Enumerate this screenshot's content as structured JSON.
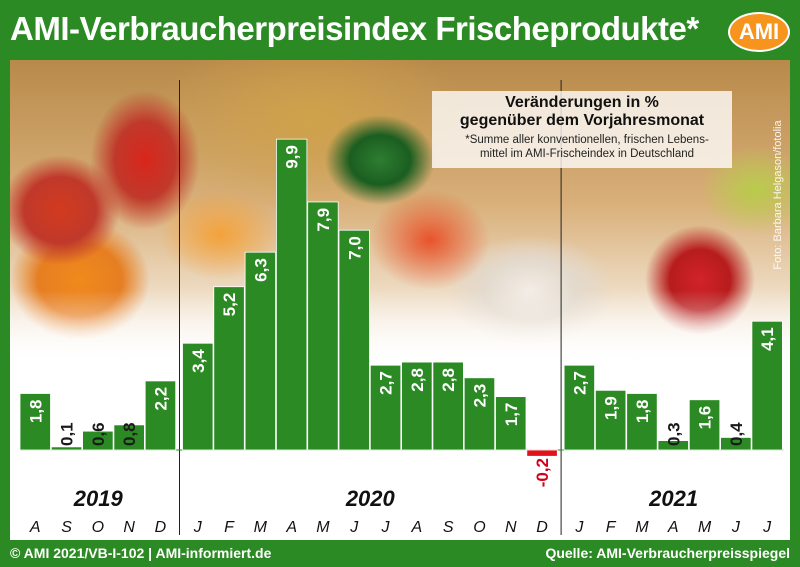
{
  "header": {
    "title": "AMI-Verbraucherpreisindex Frischeprodukte*",
    "logo_text": "AMI"
  },
  "legend": {
    "subtitle_line1": "Veränderungen in %",
    "subtitle_line2": "gegenüber dem Vorjahresmonat",
    "footnote_line1": "*Summe aller konventionellen, frischen Lebens-",
    "footnote_line2": "mittel im AMI-Frischeindex in Deutschland"
  },
  "photo_credit": "Foto: Barbara Helgason/fotolia",
  "footer": {
    "left": "© AMI 2021/VB-I-102 | AMI-informiert.de",
    "right": "Quelle: AMI-Verbraucherpreisspiegel"
  },
  "colors": {
    "bar_positive": "#2c8a24",
    "bar_negative": "#e0121b",
    "brand_green": "#2c8a24",
    "logo_orange": "#f7941d"
  },
  "chart_data": {
    "type": "bar",
    "title": "AMI-Verbraucherpreisindex Frischeprodukte*",
    "subtitle": "Veränderungen in % gegenüber dem Vorjahresmonat",
    "ylim": [
      -0.2,
      9.9
    ],
    "grid": false,
    "years": [
      {
        "label": "2019",
        "months": [
          "A",
          "S",
          "O",
          "N",
          "D"
        ]
      },
      {
        "label": "2020",
        "months": [
          "J",
          "F",
          "M",
          "A",
          "M",
          "J",
          "J",
          "A",
          "S",
          "O",
          "N",
          "D"
        ]
      },
      {
        "label": "2021",
        "months": [
          "J",
          "F",
          "M",
          "A",
          "M",
          "J",
          "J"
        ]
      }
    ],
    "categories": [
      "A",
      "S",
      "O",
      "N",
      "D",
      "J",
      "F",
      "M",
      "A",
      "M",
      "J",
      "J",
      "A",
      "S",
      "O",
      "N",
      "D",
      "J",
      "F",
      "M",
      "A",
      "M",
      "J",
      "J"
    ],
    "values": [
      1.8,
      0.1,
      0.6,
      0.8,
      2.2,
      3.4,
      5.2,
      6.3,
      9.9,
      7.9,
      7.0,
      2.7,
      2.8,
      2.8,
      2.3,
      1.7,
      -0.2,
      2.7,
      1.9,
      1.8,
      0.3,
      1.6,
      0.4,
      4.1
    ],
    "value_labels": [
      "1,8",
      "0,1",
      "0,6",
      "0,8",
      "2,2",
      "3,4",
      "5,2",
      "6,3",
      "9,9",
      "7,9",
      "7,0",
      "2,7",
      "2,8",
      "2,8",
      "2,3",
      "1,7",
      "-0,2",
      "2,7",
      "1,9",
      "1,8",
      "0,3",
      "1,6",
      "0,4",
      "4,1"
    ]
  }
}
